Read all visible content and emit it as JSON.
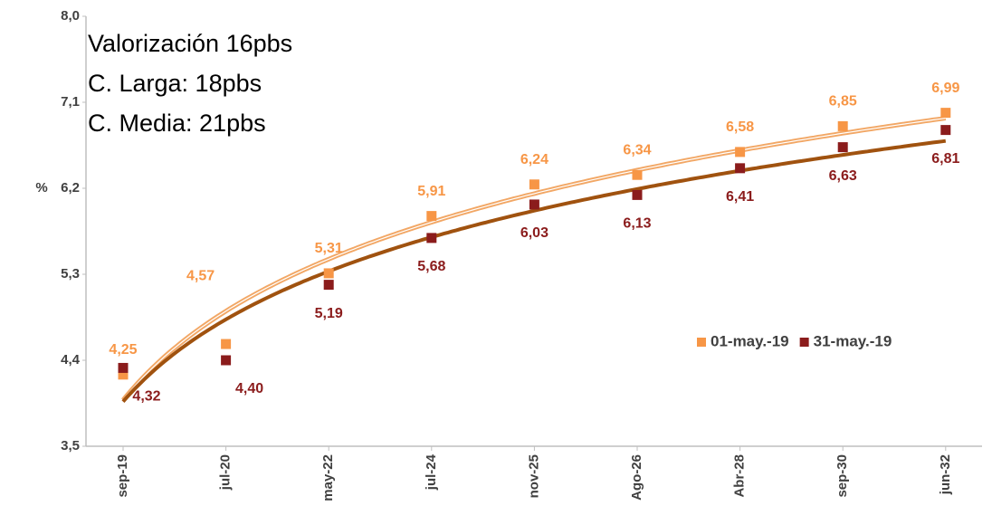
{
  "chart_data": {
    "type": "scatter",
    "y_label": "%",
    "annotations": [
      "Valorización 16pbs",
      "C. Larga: 18pbs",
      "C. Media: 21pbs"
    ],
    "categories": [
      "sep-19",
      "jul-20",
      "may-22",
      "jul-24",
      "nov-25",
      "Ago-26",
      "Abr-28",
      "sep-30",
      "jun-32"
    ],
    "series": [
      {
        "name": "01-may.-19",
        "color": "#F79646",
        "trend_color": "#F2A765",
        "values": [
          4.25,
          4.57,
          5.31,
          5.91,
          6.24,
          6.34,
          6.58,
          6.85,
          6.99
        ],
        "value_labels": [
          "4,25",
          "4,57",
          "5,31",
          "5,91",
          "6,24",
          "6,34",
          "6,58",
          "6,85",
          "6,99"
        ]
      },
      {
        "name": "31-may.-19",
        "color": "#8B1C1C",
        "trend_color": "#A0520F",
        "values": [
          4.32,
          4.4,
          5.19,
          5.68,
          6.03,
          6.13,
          6.41,
          6.63,
          6.81
        ],
        "value_labels": [
          "4,32",
          "4,40",
          "5,19",
          "5,68",
          "6,03",
          "6,13",
          "6,41",
          "6,63",
          "6,81"
        ]
      }
    ],
    "ylim": [
      3.5,
      8.0
    ],
    "yticks": [
      {
        "value": 3.5,
        "label": "3,5"
      },
      {
        "value": 4.4,
        "label": "4,4"
      },
      {
        "value": 5.3,
        "label": "5,3"
      },
      {
        "value": 6.2,
        "label": "6,2"
      },
      {
        "value": 7.1,
        "label": "7,1"
      },
      {
        "value": 8.0,
        "label": "8,0"
      }
    ],
    "legend": "right",
    "grid": false
  }
}
